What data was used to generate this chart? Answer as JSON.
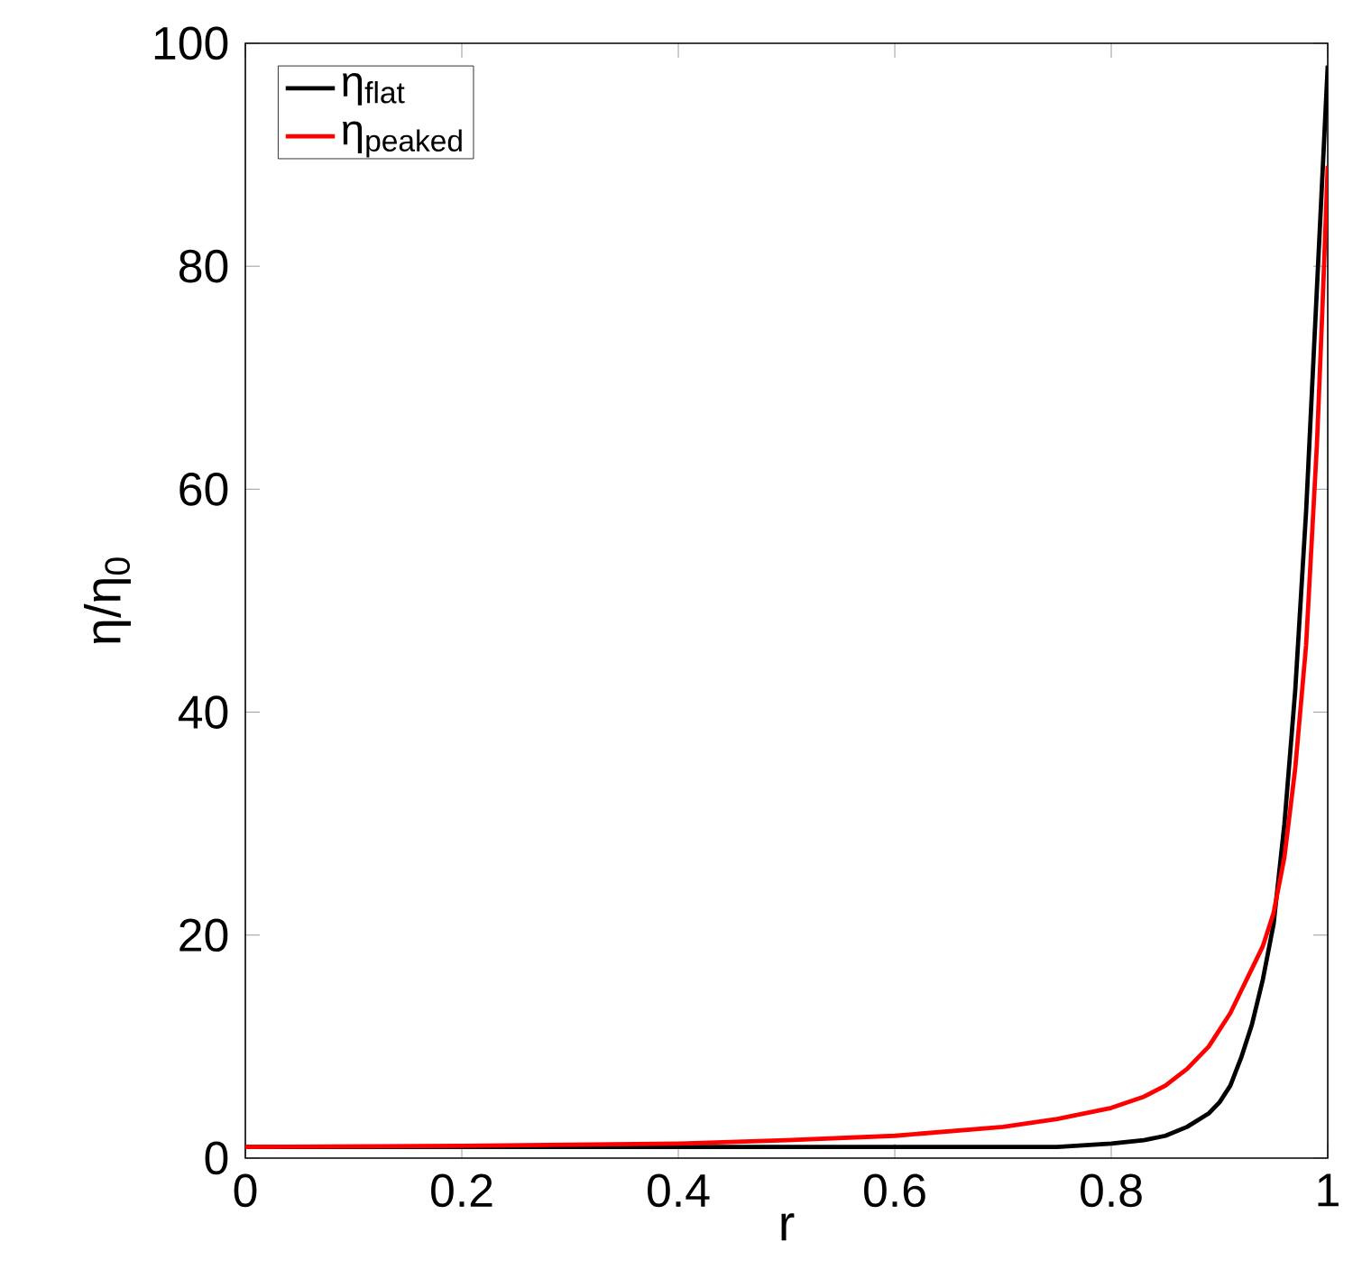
{
  "chart_data": {
    "type": "line",
    "xlabel": "r",
    "ylabel": "η/η$_{0}$",
    "x": [
      0,
      0.2,
      0.4,
      0.5,
      0.6,
      0.7,
      0.75,
      0.8,
      0.83,
      0.85,
      0.87,
      0.89,
      0.9,
      0.91,
      0.92,
      0.93,
      0.94,
      0.95,
      0.96,
      0.97,
      0.98,
      0.99,
      0.995,
      1
    ],
    "series": [
      {
        "name": "η$_{flat}$",
        "color": "#000000",
        "values": [
          1,
          1,
          1,
          1,
          1,
          1,
          1,
          1.3,
          1.6,
          2,
          2.8,
          4,
          5,
          6.5,
          9,
          12,
          16,
          21,
          30,
          42,
          58,
          78,
          88,
          98
        ]
      },
      {
        "name": "η$_{peaked}$",
        "color": "#ff0000",
        "values": [
          1,
          1.1,
          1.3,
          1.6,
          2,
          2.8,
          3.5,
          4.5,
          5.5,
          6.5,
          8,
          10,
          11.5,
          13,
          15,
          17,
          19,
          22,
          27,
          35,
          46,
          64,
          76,
          89
        ]
      }
    ],
    "xlim": [
      0,
      1
    ],
    "ylim": [
      0,
      100
    ],
    "xticks": [
      0,
      0.2,
      0.4,
      0.6,
      0.8,
      1
    ],
    "yticks": [
      0,
      20,
      40,
      60,
      80,
      100
    ],
    "grid": false,
    "legend": "top left",
    "marker": "none",
    "line_style": "solid"
  }
}
